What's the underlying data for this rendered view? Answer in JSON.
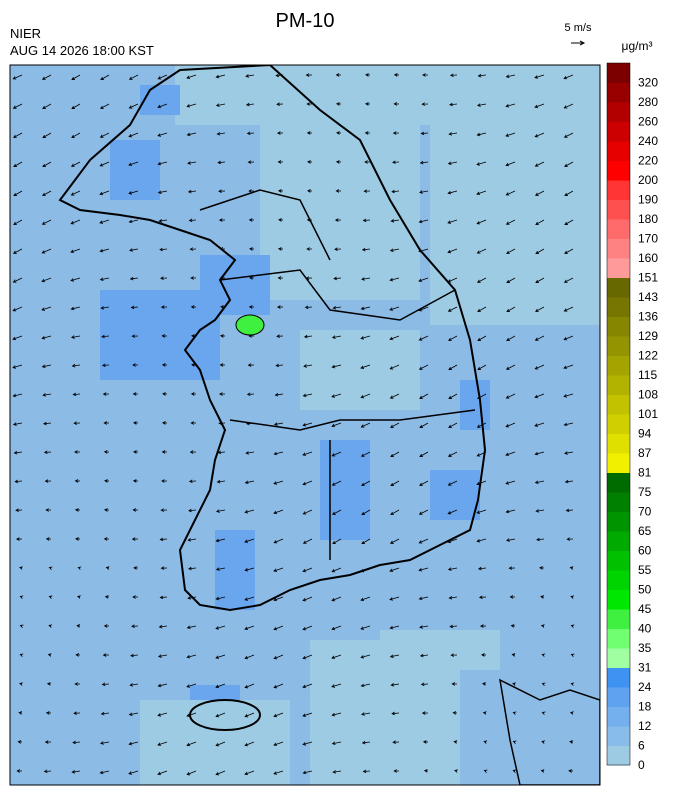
{
  "header": {
    "title": "PM-10",
    "agency": "NIER",
    "datetime": "AUG 14 2026 18:00 KST"
  },
  "wind_scale": {
    "label": "5 m/s"
  },
  "colorbar": {
    "unit": "μg/m³",
    "levels": [
      0,
      6,
      12,
      18,
      24,
      31,
      35,
      40,
      45,
      50,
      55,
      60,
      65,
      70,
      75,
      81,
      87,
      94,
      101,
      108,
      115,
      122,
      129,
      136,
      143,
      151,
      160,
      170,
      180,
      190,
      200,
      220,
      240,
      260,
      280,
      320
    ],
    "colors": [
      "#9ccbe3",
      "#88bdea",
      "#74b0ee",
      "#5fa3f0",
      "#3e93f2",
      "#a0ffa0",
      "#70ff70",
      "#40f040",
      "#00e800",
      "#00d400",
      "#00c000",
      "#00aa00",
      "#009400",
      "#008000",
      "#006c00",
      "#f0f000",
      "#e0e000",
      "#d0d000",
      "#c2c200",
      "#b2b200",
      "#a4a400",
      "#949400",
      "#868600",
      "#767600",
      "#686800",
      "#ff9a9a",
      "#ff8282",
      "#ff6a6a",
      "#ff5050",
      "#ff3434",
      "#ff0000",
      "#e60000",
      "#cc0000",
      "#b20000",
      "#980000",
      "#7c0000"
    ]
  }
}
